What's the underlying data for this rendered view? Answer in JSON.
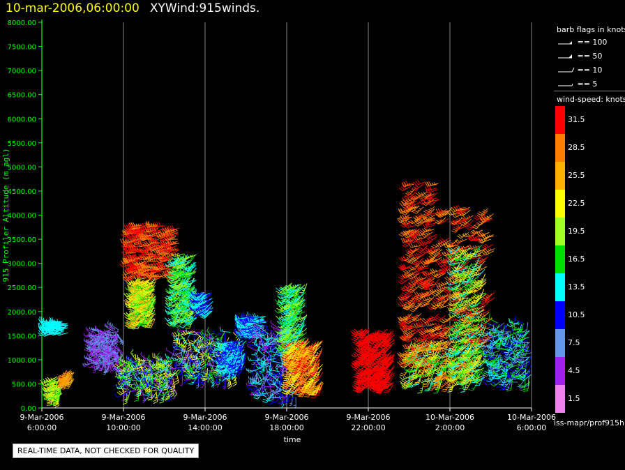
{
  "header": {
    "timestamp": "10-mar-2006,06:00:00",
    "title": "XYWind:915winds."
  },
  "legend": {
    "flag_title": "barb flags in knots",
    "flags": [
      {
        "label": "== 100"
      },
      {
        "label": "== 50"
      },
      {
        "label": "== 10"
      },
      {
        "label": "== 5"
      }
    ],
    "speed_title": "wind-speed: knots",
    "colorbar": [
      {
        "label": "31.5",
        "color": "#ff0000"
      },
      {
        "label": "28.5",
        "color": "#ff8000"
      },
      {
        "label": "25.5",
        "color": "#ffb000"
      },
      {
        "label": "22.5",
        "color": "#ffff00"
      },
      {
        "label": "19.5",
        "color": "#a0ff20"
      },
      {
        "label": "16.5",
        "color": "#00e000"
      },
      {
        "label": "13.5",
        "color": "#00ffff"
      },
      {
        "label": "10.5",
        "color": "#0000ff"
      },
      {
        "label": "7.5",
        "color": "#6495ed"
      },
      {
        "label": "4.5",
        "color": "#a020f0"
      },
      {
        "label": "1.5",
        "color": "#ee82ee"
      }
    ]
  },
  "footer": {
    "source_id": "iss-mapr/prof915h",
    "quality_note": "REAL-TIME DATA, NOT CHECKED FOR QUALITY"
  },
  "chart_data": {
    "type": "scatter",
    "subtype": "wind-barb time-height",
    "ylabel": "915 Profiler Altitude (m agl)",
    "xlabel": "time",
    "ylim": [
      0,
      8000
    ],
    "y_ticks": [
      "0.00",
      "500.00",
      "1000.00",
      "1500.00",
      "2000.00",
      "2500.00",
      "3000.00",
      "3500.00",
      "4000.00",
      "4500.00",
      "5000.00",
      "5500.00",
      "6000.00",
      "6500.00",
      "7000.00",
      "7500.00",
      "8000.00"
    ],
    "xlim_hours": [
      0,
      24
    ],
    "x_ticks": [
      {
        "hour": 0,
        "date": "9-Mar-2006",
        "time": "6:00:00"
      },
      {
        "hour": 4,
        "date": "9-Mar-2006",
        "time": "10:00:00"
      },
      {
        "hour": 8,
        "date": "9-Mar-2006",
        "time": "14:00:00"
      },
      {
        "hour": 12,
        "date": "9-Mar-2006",
        "time": "18:00:00"
      },
      {
        "hour": 16,
        "date": "9-Mar-2006",
        "time": "22:00:00"
      },
      {
        "hour": 20,
        "date": "10-Mar-2006",
        "time": "2:00:00"
      },
      {
        "hour": 24,
        "date": "10-Mar-2006",
        "time": "6:00:00"
      }
    ],
    "vertical_gridlines": true,
    "barb_clusters": [
      {
        "name": "c1",
        "t": [
          0.3,
          1.3
        ],
        "z": [
          1550,
          1800
        ],
        "speeds": [
          13.5
        ],
        "dir": [
          240,
          280
        ]
      },
      {
        "name": "c2",
        "t": [
          0.5,
          1.0
        ],
        "z": [
          250,
          650
        ],
        "speeds": [
          16.5,
          19.5,
          22.5
        ],
        "dir": [
          170,
          260
        ]
      },
      {
        "name": "c3",
        "t": [
          1.2,
          1.6
        ],
        "z": [
          550,
          800
        ],
        "speeds": [
          28.5,
          25.5
        ],
        "dir": [
          200,
          240
        ]
      },
      {
        "name": "c4",
        "t": [
          2.5,
          3.8
        ],
        "z": [
          900,
          1650
        ],
        "speeds": [
          4.5,
          7.5
        ],
        "dir": [
          140,
          320
        ]
      },
      {
        "name": "c5",
        "t": [
          4.0,
          6.5
        ],
        "z": [
          300,
          1000
        ],
        "speeds": [
          7.5,
          10.5,
          13.5,
          16.5,
          19.5,
          22.5,
          4.5
        ],
        "dir": [
          150,
          330
        ]
      },
      {
        "name": "c6",
        "t": [
          4.4,
          6.8
        ],
        "z": [
          2700,
          3800
        ],
        "speeds": [
          31.5,
          28.5
        ],
        "dir": [
          240,
          270
        ]
      },
      {
        "name": "c7",
        "t": [
          4.6,
          5.6
        ],
        "z": [
          1800,
          2700
        ],
        "speeds": [
          22.5,
          19.5,
          16.5,
          25.5
        ],
        "dir": [
          200,
          260
        ]
      },
      {
        "name": "c8",
        "t": [
          6.6,
          7.6
        ],
        "z": [
          1800,
          3200
        ],
        "speeds": [
          13.5,
          16.5,
          19.5
        ],
        "dir": [
          200,
          260
        ]
      },
      {
        "name": "c9",
        "t": [
          7.8,
          8.4
        ],
        "z": [
          2000,
          2400
        ],
        "speeds": [
          10.5,
          13.5
        ],
        "dir": [
          220,
          260
        ]
      },
      {
        "name": "c10",
        "t": [
          6.5,
          9.5
        ],
        "z": [
          600,
          1600
        ],
        "speeds": [
          4.5,
          7.5,
          10.5,
          13.5,
          16.5,
          22.5
        ],
        "dir": [
          120,
          330
        ]
      },
      {
        "name": "c11",
        "t": [
          9.0,
          10.0
        ],
        "z": [
          800,
          1400
        ],
        "speeds": [
          10.5,
          13.5
        ],
        "dir": [
          180,
          260
        ]
      },
      {
        "name": "c12",
        "t": [
          10.0,
          11.0
        ],
        "z": [
          1500,
          1900
        ],
        "speeds": [
          13.5,
          10.5
        ],
        "dir": [
          240,
          280
        ]
      },
      {
        "name": "c13",
        "t": [
          10.5,
          12.5
        ],
        "z": [
          200,
          1700
        ],
        "speeds": [
          4.5,
          7.5,
          10.5,
          13.5
        ],
        "dir": [
          150,
          330
        ]
      },
      {
        "name": "c14",
        "t": [
          12.0,
          13.0
        ],
        "z": [
          1200,
          2600
        ],
        "speeds": [
          13.5,
          16.5,
          19.5
        ],
        "dir": [
          200,
          250
        ]
      },
      {
        "name": "c15",
        "t": [
          12.2,
          13.8
        ],
        "z": [
          400,
          1450
        ],
        "speeds": [
          28.5,
          25.5,
          22.5,
          31.5
        ],
        "dir": [
          200,
          230
        ]
      },
      {
        "name": "c16",
        "t": [
          15.7,
          17.3
        ],
        "z": [
          450,
          1650
        ],
        "speeds": [
          31.5
        ],
        "dir": [
          210,
          240
        ]
      },
      {
        "name": "c17",
        "t": [
          18.0,
          19.5
        ],
        "z": [
          900,
          4700
        ],
        "speeds": [
          31.5,
          28.5
        ],
        "dir": [
          220,
          260
        ]
      },
      {
        "name": "c18",
        "t": [
          18.0,
          21.5
        ],
        "z": [
          500,
          1400
        ],
        "speeds": [
          22.5,
          25.5,
          28.5,
          19.5,
          16.5,
          13.5
        ],
        "dir": [
          180,
          260
        ]
      },
      {
        "name": "c19",
        "t": [
          19.5,
          22.2
        ],
        "z": [
          1300,
          4200
        ],
        "speeds": [
          31.5,
          28.5,
          25.5
        ],
        "dir": [
          220,
          260
        ]
      },
      {
        "name": "c20",
        "t": [
          20.3,
          21.8
        ],
        "z": [
          600,
          3400
        ],
        "speeds": [
          19.5,
          16.5,
          13.5,
          22.5
        ],
        "dir": [
          200,
          260
        ]
      },
      {
        "name": "c21",
        "t": [
          22.0,
          24.0
        ],
        "z": [
          500,
          1800
        ],
        "speeds": [
          10.5,
          7.5,
          13.5,
          16.5
        ],
        "dir": [
          180,
          300
        ]
      }
    ]
  }
}
